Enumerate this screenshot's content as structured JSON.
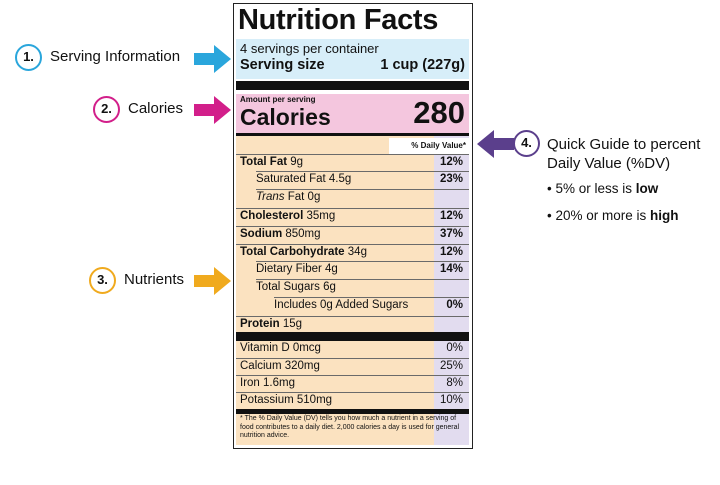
{
  "colors": {
    "cyan": "#2aa6dc",
    "magenta": "#d21f8a",
    "orange": "#f0aa1e",
    "purple": "#5b3f8c",
    "serving_bg": "#d7eef9",
    "calories_bg": "#f4c6de",
    "nutrients_bg": "#fbe2c0",
    "dv_bg": "#e2dcef"
  },
  "label": {
    "title": "Nutrition Facts",
    "servings_per_container": "4 servings per container",
    "serving_size_label": "Serving size",
    "serving_size_value": "1 cup (227g)",
    "amount_per_serving": "Amount per serving",
    "calories_label": "Calories",
    "calories_value": "280",
    "daily_value_header": "% Daily Value*",
    "nutrients": [
      {
        "name": "Total Fat",
        "amount": "9g",
        "dv": "12%"
      },
      {
        "name": "Saturated Fat",
        "amount": "4.5g",
        "dv": "23%"
      },
      {
        "name": "Trans",
        "amount": "Fat 0g",
        "dv": ""
      },
      {
        "name": "Cholesterol",
        "amount": "35mg",
        "dv": "12%"
      },
      {
        "name": "Sodium",
        "amount": "850mg",
        "dv": "37%"
      },
      {
        "name": "Total Carbohydrate",
        "amount": "34g",
        "dv": "12%"
      },
      {
        "name": "Dietary Fiber",
        "amount": "4g",
        "dv": "14%"
      },
      {
        "name": "Total Sugars",
        "amount": "6g",
        "dv": ""
      },
      {
        "name": "Includes 0g Added Sugars",
        "amount": "",
        "dv": "0%"
      },
      {
        "name": "Protein",
        "amount": "15g",
        "dv": ""
      }
    ],
    "vitamins": [
      {
        "name": "Vitamin D 0mcg",
        "dv": "0%"
      },
      {
        "name": "Calcium 320mg",
        "dv": "25%"
      },
      {
        "name": "Iron 1.6mg",
        "dv": "8%"
      },
      {
        "name": "Potassium 510mg",
        "dv": "10%"
      }
    ],
    "footnote_marker": "*",
    "footnote": "The % Daily Value (DV) tells you how much a nutrient in a serving of food contributes to a daily diet. 2,000 calories a day is used for general nutrition advice."
  },
  "callouts": [
    {
      "number": "1.",
      "label": "Serving Information"
    },
    {
      "number": "2.",
      "label": "Calories"
    },
    {
      "number": "3.",
      "label": "Nutrients"
    },
    {
      "number": "4.",
      "label_line1": "Quick Guide to percent",
      "label_line2": "Daily Value (%DV)"
    }
  ],
  "guide": {
    "bullet": "•",
    "low_prefix": "5% or less is ",
    "low_word": "low",
    "high_prefix": "20% or more is ",
    "high_word": "high"
  }
}
